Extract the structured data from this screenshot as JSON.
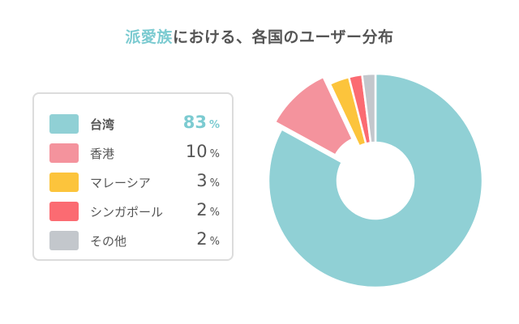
{
  "title": {
    "accent": "派愛族",
    "rest": "における、各国のユーザー分布"
  },
  "chart_data": {
    "type": "pie",
    "title": "派愛族における、各国のユーザー分布",
    "categories": [
      "台湾",
      "香港",
      "マレーシア",
      "シンガポール",
      "その他"
    ],
    "values": [
      83,
      10,
      3,
      2,
      2
    ],
    "unit": "%",
    "colors": [
      "#90d0d5",
      "#f4939d",
      "#fcc43c",
      "#fb6b72",
      "#c3c7cc"
    ],
    "exploded": "香港",
    "donut": true
  },
  "legend": {
    "items": [
      {
        "label": "台湾",
        "value": "83",
        "unit": "%",
        "highlight": true
      },
      {
        "label": "香港",
        "value": "10",
        "unit": "%"
      },
      {
        "label": "マレーシア",
        "value": "3",
        "unit": "%"
      },
      {
        "label": "シンガポール",
        "value": "2",
        "unit": "%"
      },
      {
        "label": "その他",
        "value": "2",
        "unit": "%"
      }
    ]
  }
}
